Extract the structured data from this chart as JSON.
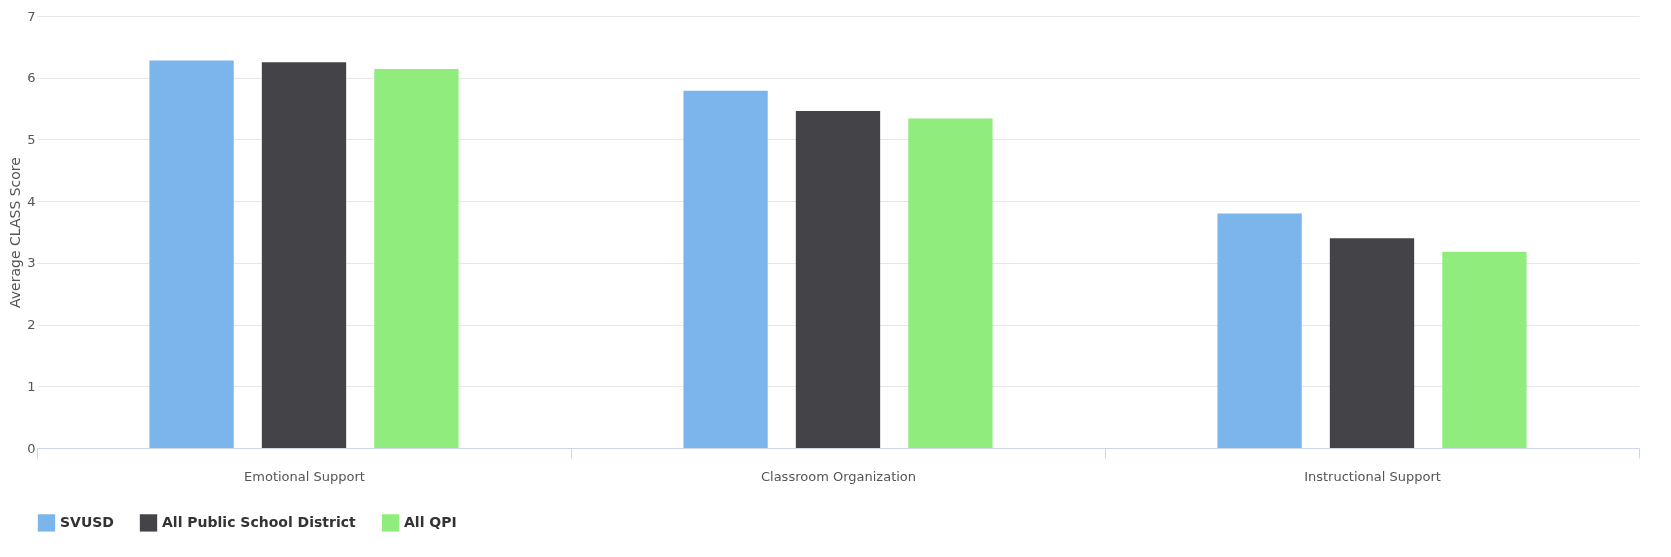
{
  "chart_data": {
    "type": "bar",
    "ylabel": "Average CLASS Score",
    "categories": [
      "Emotional Support",
      "Classroom Organization",
      "Instructional Support"
    ],
    "series": [
      {
        "name": "SVUSD",
        "color": "#7cb5ec",
        "values": [
          6.28,
          5.79,
          3.8
        ]
      },
      {
        "name": "All Public School District",
        "color": "#434348",
        "values": [
          6.25,
          5.46,
          3.4
        ]
      },
      {
        "name": "All QPI",
        "color": "#90ed7d",
        "values": [
          6.14,
          5.34,
          3.18
        ]
      }
    ],
    "ylim": [
      0,
      7
    ],
    "yticks": [
      0,
      1,
      2,
      3,
      4,
      5,
      6,
      7
    ],
    "grid": "y",
    "legend": "bottom"
  }
}
